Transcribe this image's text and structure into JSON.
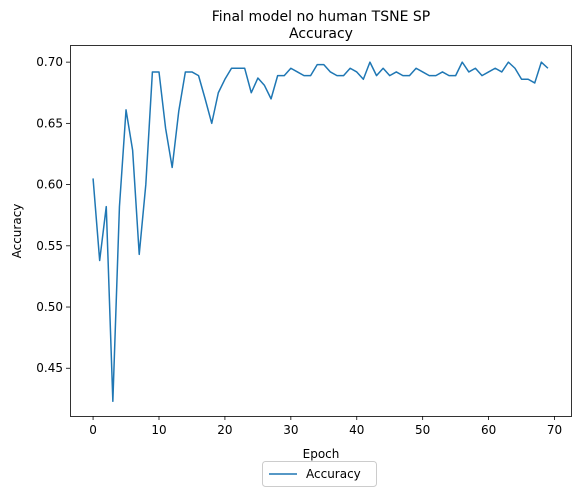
{
  "chart_data": {
    "type": "line",
    "title": "Final model no human TSNE SP",
    "subtitle": "Accuracy",
    "xlabel": "Epoch",
    "ylabel": "Accuracy",
    "xlim": [
      -3.5,
      72.5
    ],
    "ylim": [
      0.411,
      0.714
    ],
    "xticks": [
      0,
      10,
      20,
      30,
      40,
      50,
      60,
      70
    ],
    "xtick_labels": [
      "0",
      "10",
      "20",
      "30",
      "40",
      "50",
      "60",
      "70"
    ],
    "yticks": [
      0.45,
      0.5,
      0.55,
      0.6,
      0.65,
      0.7
    ],
    "ytick_labels": [
      "0.45",
      "0.50",
      "0.55",
      "0.60",
      "0.65",
      "0.70"
    ],
    "grid": false,
    "legend_position": "bottom-center-outside",
    "series": [
      {
        "name": "Accuracy",
        "color": "#1f77b4",
        "x": [
          0,
          1,
          2,
          3,
          4,
          5,
          6,
          7,
          8,
          9,
          10,
          11,
          12,
          13,
          14,
          15,
          16,
          17,
          18,
          19,
          20,
          21,
          22,
          23,
          24,
          25,
          26,
          27,
          28,
          29,
          30,
          31,
          32,
          33,
          34,
          35,
          36,
          37,
          38,
          39,
          40,
          41,
          42,
          43,
          44,
          45,
          46,
          47,
          48,
          49,
          50,
          51,
          52,
          53,
          54,
          55,
          56,
          57,
          58,
          59,
          60,
          61,
          62,
          63,
          64,
          65,
          66,
          67,
          68,
          69
        ],
        "values": [
          0.605,
          0.538,
          0.582,
          0.423,
          0.582,
          0.661,
          0.628,
          0.543,
          0.6,
          0.692,
          0.692,
          0.646,
          0.614,
          0.66,
          0.692,
          0.692,
          0.689,
          0.67,
          0.65,
          0.675,
          0.686,
          0.695,
          0.695,
          0.695,
          0.675,
          0.687,
          0.681,
          0.67,
          0.689,
          0.689,
          0.695,
          0.692,
          0.689,
          0.689,
          0.698,
          0.698,
          0.692,
          0.689,
          0.689,
          0.695,
          0.692,
          0.686,
          0.7,
          0.689,
          0.695,
          0.689,
          0.692,
          0.689,
          0.689,
          0.695,
          0.692,
          0.689,
          0.689,
          0.692,
          0.689,
          0.689,
          0.7,
          0.692,
          0.695,
          0.689,
          0.692,
          0.695,
          0.692,
          0.7,
          0.695,
          0.686,
          0.686,
          0.683,
          0.7,
          0.695
        ]
      }
    ]
  }
}
